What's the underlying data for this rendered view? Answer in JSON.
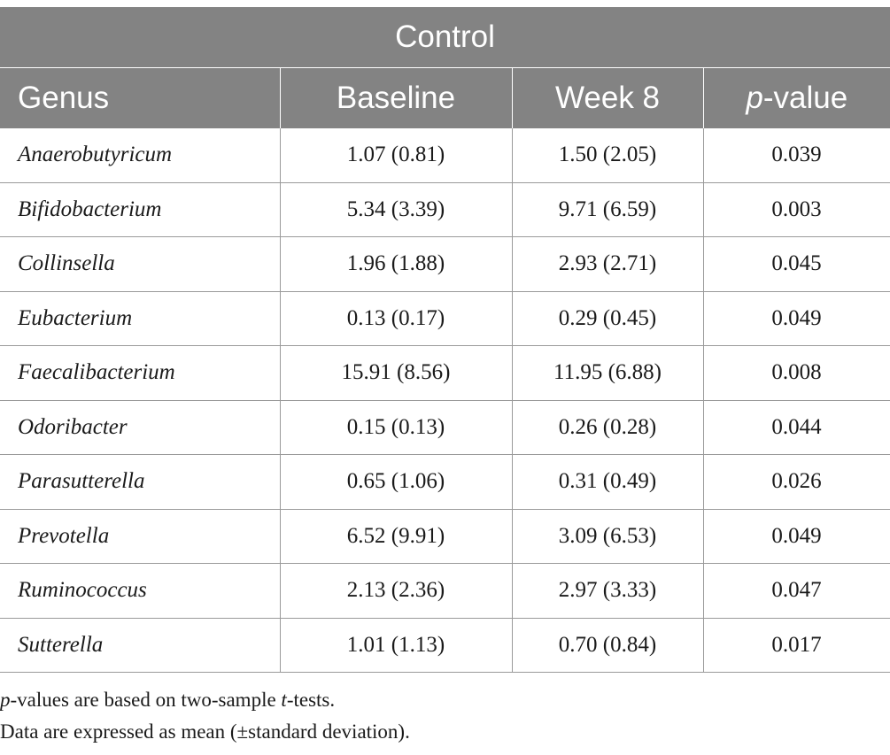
{
  "table": {
    "title": "Control",
    "headers": {
      "genus": "Genus",
      "baseline": "Baseline",
      "week8": "Week 8",
      "p_italic": "p",
      "p_rest": "-value"
    },
    "rows": [
      {
        "genus": "Anaerobutyricum",
        "baseline": "1.07 (0.81)",
        "week8": "1.50 (2.05)",
        "p": "0.039"
      },
      {
        "genus": "Bifidobacterium",
        "baseline": "5.34 (3.39)",
        "week8": "9.71 (6.59)",
        "p": "0.003"
      },
      {
        "genus": "Collinsella",
        "baseline": "1.96 (1.88)",
        "week8": "2.93 (2.71)",
        "p": "0.045"
      },
      {
        "genus": "Eubacterium",
        "baseline": "0.13 (0.17)",
        "week8": "0.29 (0.45)",
        "p": "0.049"
      },
      {
        "genus": "Faecalibacterium",
        "baseline": "15.91 (8.56)",
        "week8": "11.95 (6.88)",
        "p": "0.008"
      },
      {
        "genus": "Odoribacter",
        "baseline": "0.15 (0.13)",
        "week8": "0.26 (0.28)",
        "p": "0.044"
      },
      {
        "genus": "Parasutterella",
        "baseline": "0.65 (1.06)",
        "week8": "0.31 (0.49)",
        "p": "0.026"
      },
      {
        "genus": "Prevotella",
        "baseline": "6.52 (9.91)",
        "week8": "3.09 (6.53)",
        "p": "0.049"
      },
      {
        "genus": "Ruminococcus",
        "baseline": "2.13 (2.36)",
        "week8": "2.97 (3.33)",
        "p": "0.047"
      },
      {
        "genus": "Sutterella",
        "baseline": "1.01 (1.13)",
        "week8": "0.70 (0.84)",
        "p": "0.017"
      }
    ]
  },
  "notes": {
    "note1": {
      "p_italic": "p",
      "mid": "-values are based on two-sample ",
      "t_italic": "t",
      "end": "-tests."
    },
    "note2": "Data are expressed as mean (±standard deviation)."
  },
  "colors": {
    "header_bg": "#838383",
    "header_text": "#ffffff",
    "grid_line": "#9a9a9a",
    "body_text": "#1a1a1a"
  }
}
